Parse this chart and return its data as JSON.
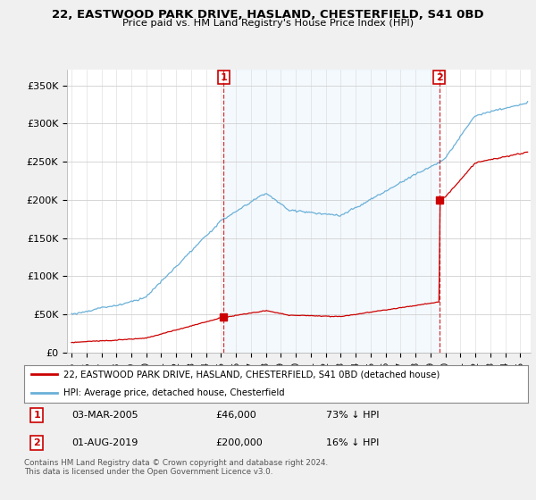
{
  "title": "22, EASTWOOD PARK DRIVE, HASLAND, CHESTERFIELD, S41 0BD",
  "subtitle": "Price paid vs. HM Land Registry's House Price Index (HPI)",
  "hpi_label": "HPI: Average price, detached house, Chesterfield",
  "property_label": "22, EASTWOOD PARK DRIVE, HASLAND, CHESTERFIELD, S41 0BD (detached house)",
  "footer": "Contains HM Land Registry data © Crown copyright and database right 2024.\nThis data is licensed under the Open Government Licence v3.0.",
  "sale1_date": "03-MAR-2005",
  "sale1_price": 46000,
  "sale1_hpi_text": "73% ↓ HPI",
  "sale2_date": "01-AUG-2019",
  "sale2_price": 200000,
  "sale2_hpi_text": "16% ↓ HPI",
  "hpi_color": "#6ab0d8",
  "hpi_fill_color": "#d6eaf8",
  "property_color": "#cc0000",
  "marker_color": "#cc0000",
  "ylim": [
    0,
    370000
  ],
  "yticks": [
    0,
    50000,
    100000,
    150000,
    200000,
    250000,
    300000,
    350000
  ],
  "ytick_labels": [
    "£0",
    "£50K",
    "£100K",
    "£150K",
    "£200K",
    "£250K",
    "£300K",
    "£350K"
  ],
  "background": "#f0f0f0",
  "plot_background": "#ffffff",
  "sale1_x": 2005.17,
  "sale2_x": 2019.58,
  "xmin": 1994.7,
  "xmax": 2025.7
}
